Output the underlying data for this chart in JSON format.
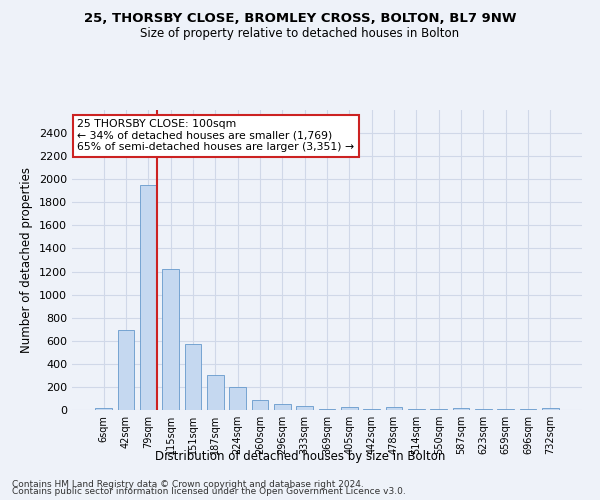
{
  "title": "25, THORSBY CLOSE, BROMLEY CROSS, BOLTON, BL7 9NW",
  "subtitle": "Size of property relative to detached houses in Bolton",
  "xlabel": "Distribution of detached houses by size in Bolton",
  "ylabel": "Number of detached properties",
  "footer_line1": "Contains HM Land Registry data © Crown copyright and database right 2024.",
  "footer_line2": "Contains public sector information licensed under the Open Government Licence v3.0.",
  "annotation_line1": "25 THORSBY CLOSE: 100sqm",
  "annotation_line2": "← 34% of detached houses are smaller (1,769)",
  "annotation_line3": "65% of semi-detached houses are larger (3,351) →",
  "bar_color": "#c5d8f0",
  "bar_edge_color": "#6699cc",
  "marker_line_color": "#cc2222",
  "annotation_box_edge_color": "#cc2222",
  "annotation_box_face_color": "#ffffff",
  "categories": [
    "6sqm",
    "42sqm",
    "79sqm",
    "115sqm",
    "151sqm",
    "187sqm",
    "224sqm",
    "260sqm",
    "296sqm",
    "333sqm",
    "369sqm",
    "405sqm",
    "442sqm",
    "478sqm",
    "514sqm",
    "550sqm",
    "587sqm",
    "623sqm",
    "659sqm",
    "696sqm",
    "732sqm"
  ],
  "values": [
    20,
    690,
    1950,
    1220,
    575,
    305,
    200,
    85,
    48,
    38,
    5,
    30,
    5,
    22,
    5,
    5,
    18,
    5,
    5,
    5,
    18
  ],
  "marker_bin_index": 2,
  "ylim": [
    0,
    2600
  ],
  "yticks": [
    0,
    200,
    400,
    600,
    800,
    1000,
    1200,
    1400,
    1600,
    1800,
    2000,
    2200,
    2400
  ],
  "background_color": "#eef2f9",
  "plot_bg_color": "#eef2f9",
  "grid_color": "#d0d8e8",
  "figsize": [
    6.0,
    5.0
  ],
  "dpi": 100
}
